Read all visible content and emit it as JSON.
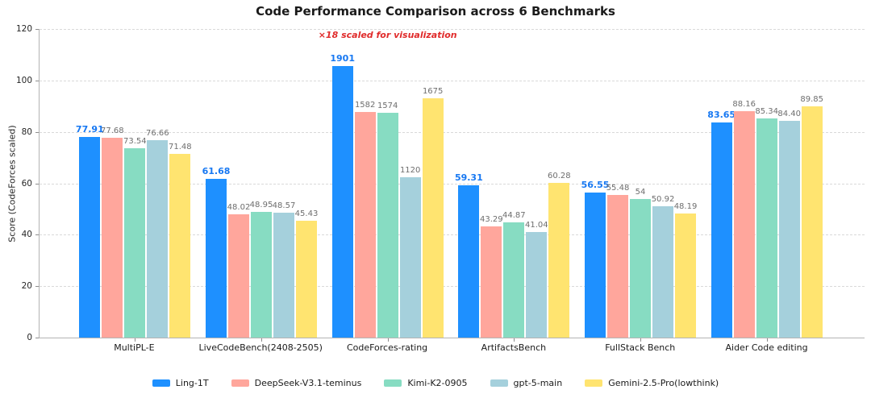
{
  "chart_data": {
    "type": "bar",
    "title": "Code Performance Comparison across 6 Benchmarks",
    "ylabel": "Score (CodeForces scaled)",
    "xlabel": "",
    "ylim": [
      0,
      120
    ],
    "yticks": [
      0,
      20,
      40,
      60,
      80,
      100,
      120
    ],
    "grid": "horizontal-dashed",
    "legend_position": "bottom",
    "categories": [
      "MultiPL-E",
      "LiveCodeBench(2408-2505)",
      "CodeForces-rating",
      "ArtifactsBench",
      "FullStack Bench",
      "Aider Code editing"
    ],
    "series": [
      {
        "name": "Ling-1T",
        "color": "#1e90ff",
        "label_color": "#1778f2",
        "emphasized": true,
        "values": [
          77.91,
          61.68,
          1901,
          59.31,
          56.55,
          83.65
        ],
        "labels": [
          "77.91",
          "61.68",
          "1901",
          "59.31",
          "56.55",
          "83.65"
        ]
      },
      {
        "name": "DeepSeek-V3.1-teminus",
        "color": "#ffa69c",
        "label_color": "#6e6e6e",
        "emphasized": false,
        "values": [
          77.68,
          48.02,
          1582,
          43.29,
          55.48,
          88.16
        ],
        "labels": [
          "77.68",
          "48.02",
          "1582",
          "43.29",
          "55.48",
          "88.16"
        ]
      },
      {
        "name": "Kimi-K2-0905",
        "color": "#87dcc2",
        "label_color": "#6e6e6e",
        "emphasized": false,
        "values": [
          73.54,
          48.95,
          1574,
          44.87,
          54,
          85.34
        ],
        "labels": [
          "73.54",
          "48.95",
          "1574",
          "44.87",
          "54",
          "85.34"
        ]
      },
      {
        "name": "gpt-5-main",
        "color": "#a5d0dc",
        "label_color": "#6e6e6e",
        "emphasized": false,
        "values": [
          76.66,
          48.57,
          1120,
          41.04,
          50.92,
          84.4
        ],
        "labels": [
          "76.66",
          "48.57",
          "1120",
          "41.04",
          "50.92",
          "84.40"
        ]
      },
      {
        "name": "Gemini-2.5-Pro(lowthink)",
        "color": "#ffe470",
        "label_color": "#6e6e6e",
        "emphasized": false,
        "values": [
          71.48,
          45.43,
          1675,
          60.28,
          48.19,
          89.85
        ],
        "labels": [
          "71.48",
          "45.43",
          "1675",
          "60.28",
          "48.19",
          "89.85"
        ]
      }
    ],
    "scaled_category": {
      "index": 2,
      "factor": 18,
      "note": "×18 scaled for visualization",
      "note_color": "#e02b2b"
    }
  }
}
